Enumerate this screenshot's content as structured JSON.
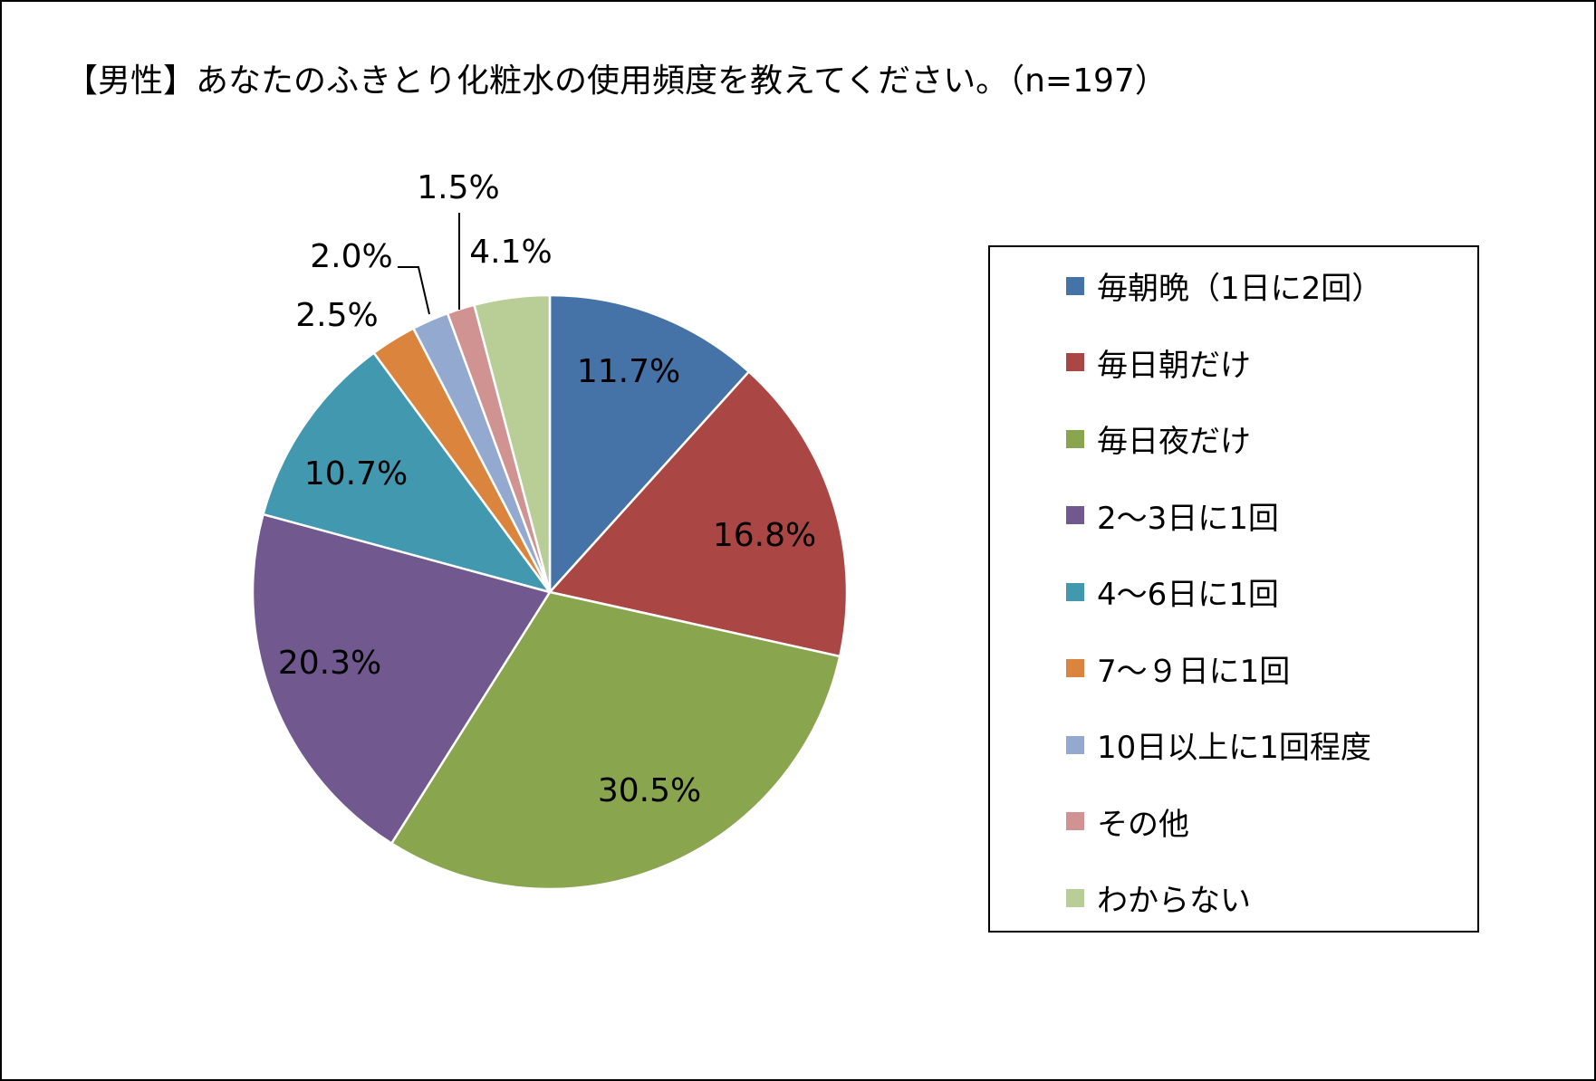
{
  "chart_data": {
    "type": "pie",
    "title": "【男性】あなたのふきとり化粧水の使用頻度を教えてください。（n=197）",
    "legend_position": "right",
    "slices": [
      {
        "label": "毎朝晩（1日に2回）",
        "value": 11.7,
        "value_label": "11.7%",
        "color": "#4572A7"
      },
      {
        "label": "毎日朝だけ",
        "value": 16.8,
        "value_label": "16.8%",
        "color": "#AA4643"
      },
      {
        "label": "毎日夜だけ",
        "value": 30.5,
        "value_label": "30.5%",
        "color": "#89A54E"
      },
      {
        "label": "2～3日に1回",
        "value": 20.3,
        "value_label": "20.3%",
        "color": "#71588F"
      },
      {
        "label": "4～6日に1回",
        "value": 10.7,
        "value_label": "10.7%",
        "color": "#4198AF"
      },
      {
        "label": "7～９日に1回",
        "value": 2.5,
        "value_label": "2.5%",
        "color": "#DB843D"
      },
      {
        "label": "10日以上に1回程度",
        "value": 2.0,
        "value_label": "2.0%",
        "color": "#93A9CF"
      },
      {
        "label": "その他",
        "value": 1.5,
        "value_label": "1.5%",
        "color": "#D19392"
      },
      {
        "label": "わからない",
        "value": 4.1,
        "value_label": "4.1%",
        "color": "#B9CD96"
      }
    ]
  }
}
